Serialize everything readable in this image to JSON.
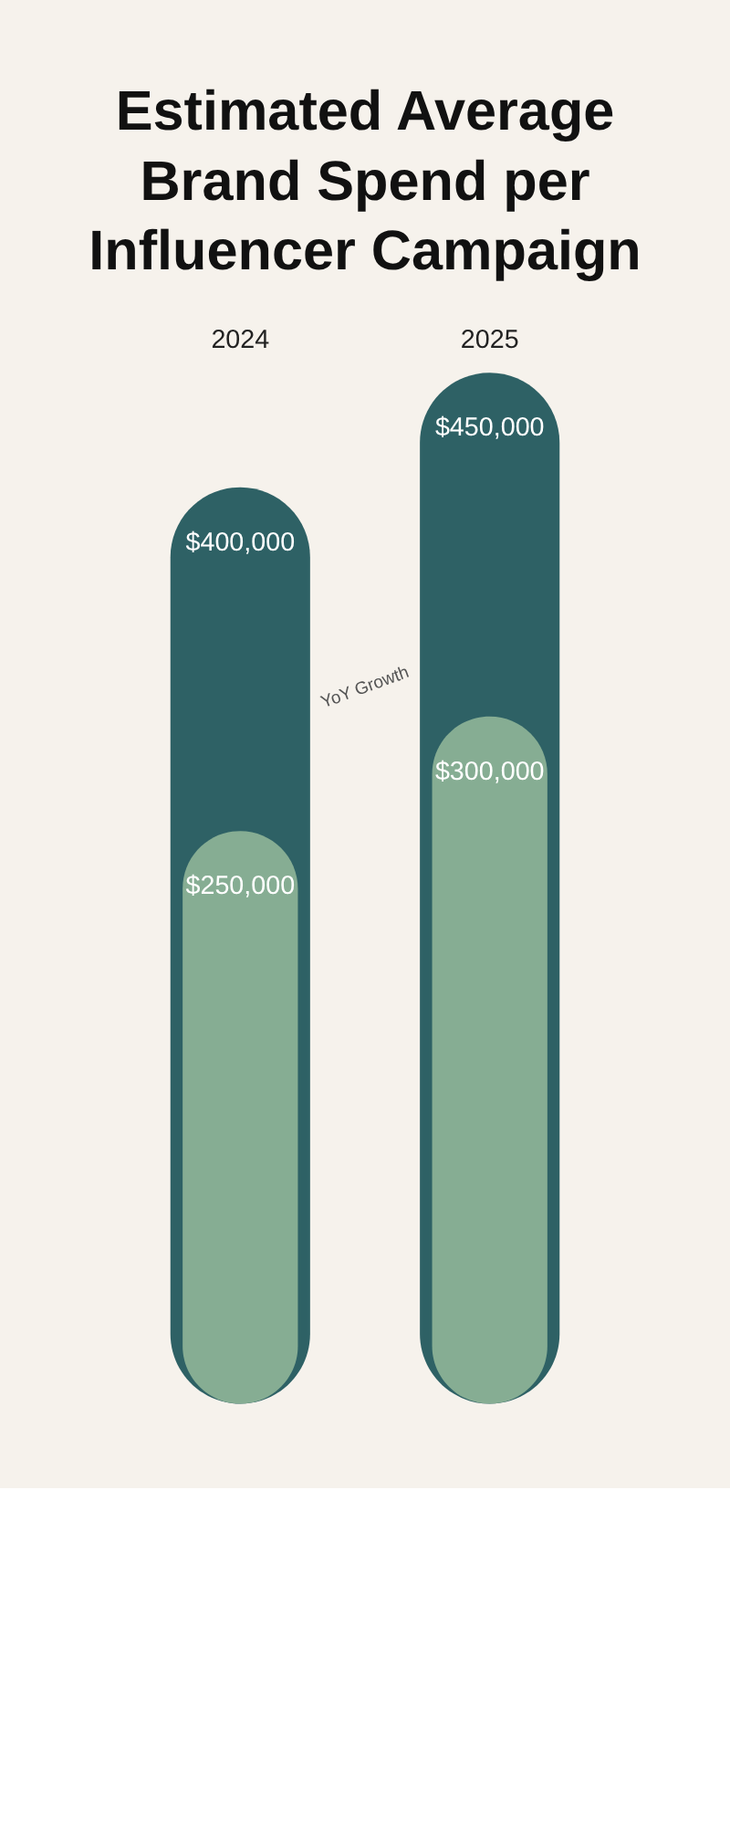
{
  "chart_data": {
    "type": "bar",
    "title": "Estimated Average Brand Spend per Influencer Campaign",
    "categories": [
      "2024",
      "2025"
    ],
    "series": [
      {
        "color": "#2e6165",
        "values": [
          400000,
          450000
        ],
        "value_labels": [
          "$400,000",
          "$450,000"
        ]
      },
      {
        "color": "#86ad93",
        "values": [
          250000,
          300000
        ],
        "value_labels": [
          "$250,000",
          "$300,000"
        ]
      }
    ],
    "annotations": [
      "YoY Growth"
    ],
    "grid": false
  }
}
